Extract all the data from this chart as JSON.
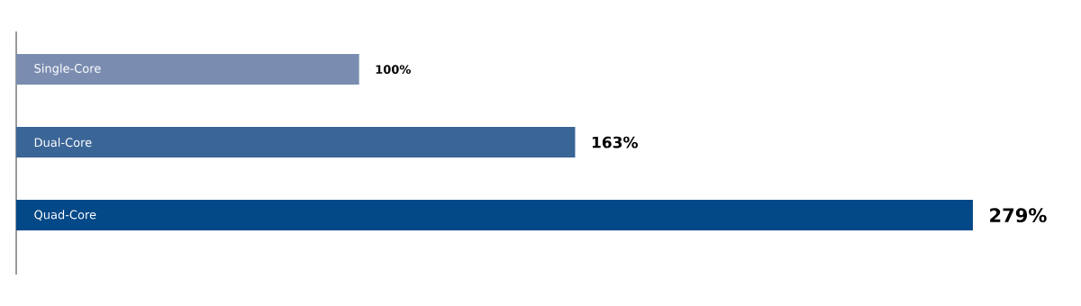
{
  "chart_data": {
    "type": "bar",
    "orientation": "horizontal",
    "categories": [
      "Single-Core",
      "Dual-Core",
      "Quad-Core"
    ],
    "values": [
      100,
      163,
      279
    ],
    "colors": [
      "#7a8db0",
      "#3a6597",
      "#034887"
    ],
    "value_labels": [
      "100%",
      "163%",
      "279%"
    ]
  }
}
